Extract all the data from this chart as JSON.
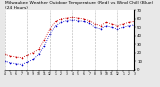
{
  "title": "Milwaukee Weather Outdoor Temperature (Red) vs Wind Chill (Blue) (24 Hours)",
  "title_fontsize": 3.2,
  "background_color": "#e8e8e8",
  "plot_bg_color": "#ffffff",
  "grid_color": "#aaaaaa",
  "time_labels": [
    "4",
    "5",
    "6",
    "7",
    "8",
    "9",
    "10",
    "11",
    "12",
    "1",
    "2",
    "3",
    "4",
    "5",
    "6",
    "7",
    "8",
    "9",
    "10",
    "11",
    "12",
    "1",
    "2",
    "3",
    "4"
  ],
  "temp_red": [
    18,
    16,
    15,
    14,
    17,
    20,
    24,
    35,
    48,
    57,
    60,
    61,
    62,
    61,
    60,
    58,
    54,
    52,
    56,
    54,
    52,
    54,
    56,
    57
  ],
  "wind_blue": [
    10,
    8,
    7,
    6,
    9,
    12,
    18,
    28,
    42,
    52,
    56,
    58,
    59,
    58,
    57,
    55,
    50,
    48,
    52,
    50,
    48,
    50,
    52,
    53
  ],
  "ylim": [
    0,
    70
  ],
  "yticks": [
    0,
    10,
    20,
    30,
    40,
    50,
    60,
    70
  ],
  "ytick_labels": [
    "0",
    "10",
    "20",
    "30",
    "40",
    "50",
    "60",
    "70"
  ],
  "red_color": "#cc0000",
  "blue_color": "#0000cc",
  "marker_size": 1.2,
  "line_width": 0.6,
  "vgrid_positions": [
    0,
    4,
    8,
    12,
    16,
    20,
    23
  ]
}
